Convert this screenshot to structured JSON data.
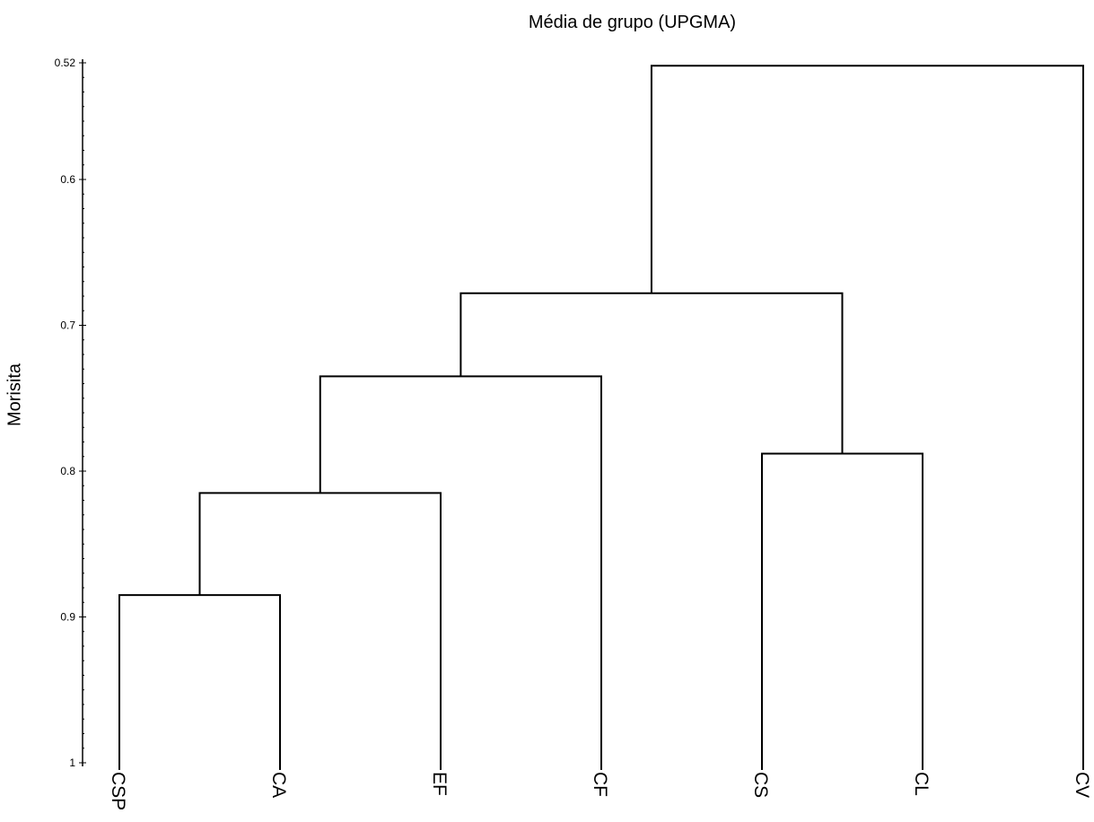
{
  "chart_data": {
    "type": "dendrogram",
    "title": "Média de grupo (UPGMA)",
    "ylabel": "Morisita",
    "ylim": [
      0.52,
      1.0
    ],
    "y_ticks": [
      {
        "value": 0.52,
        "label": "0.52"
      },
      {
        "value": 0.6,
        "label": "0.6"
      },
      {
        "value": 0.7,
        "label": "0.7"
      },
      {
        "value": 0.8,
        "label": "0.8"
      },
      {
        "value": 0.9,
        "label": "0.9"
      },
      {
        "value": 1.0,
        "label": "1"
      }
    ],
    "leaves": [
      "CSP",
      "CA",
      "EF",
      "CF",
      "CS",
      "CL",
      "CV"
    ],
    "merges": [
      {
        "left": "CSP",
        "right": "CA",
        "height": 0.885
      },
      {
        "left": "CS",
        "right": "CL",
        "height": 0.788
      },
      {
        "left": "CSP+CA",
        "right": "EF",
        "height": 0.815
      },
      {
        "left": "CSP+CA+EF",
        "right": "CF",
        "height": 0.735
      },
      {
        "left": "CSP+CA+EF+CF",
        "right": "CS+CL",
        "height": 0.678
      },
      {
        "left": "CSP+CA+EF+CF+CS+CL",
        "right": "CV",
        "height": 0.522
      }
    ]
  }
}
